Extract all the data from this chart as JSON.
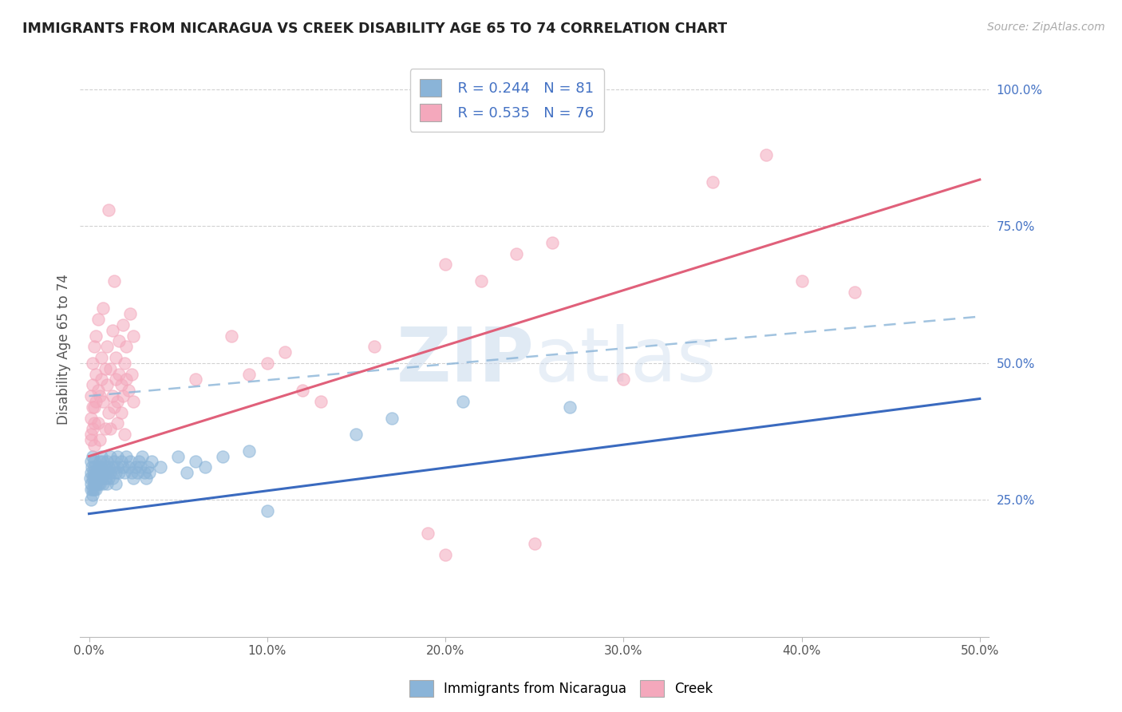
{
  "title": "IMMIGRANTS FROM NICARAGUA VS CREEK DISABILITY AGE 65 TO 74 CORRELATION CHART",
  "source": "Source: ZipAtlas.com",
  "ylabel": "Disability Age 65 to 74",
  "xlim": [
    -0.005,
    0.505
  ],
  "ylim": [
    0.0,
    1.05
  ],
  "xtick_vals": [
    0.0,
    0.1,
    0.2,
    0.3,
    0.4,
    0.5
  ],
  "xtick_labels": [
    "0.0%",
    "10.0%",
    "20.0%",
    "30.0%",
    "40.0%",
    "50.0%"
  ],
  "ytick_vals": [
    0.25,
    0.5,
    0.75,
    1.0
  ],
  "ytick_labels": [
    "25.0%",
    "50.0%",
    "75.0%",
    "100.0%"
  ],
  "nicaragua_color": "#8ab4d8",
  "creek_color": "#f4a8bc",
  "nicaragua_line_color": "#3a6abf",
  "creek_line_color": "#e0607a",
  "dash_line_color": "#8ab4d8",
  "watermark_color": "#ccdcee",
  "legend_label_nicaragua": "Immigrants from Nicaragua",
  "legend_label_creek": "Creek",
  "nic_line": [
    0.0,
    0.225,
    0.5,
    0.435
  ],
  "creek_line": [
    0.0,
    0.33,
    0.5,
    0.835
  ],
  "dash_line": [
    0.0,
    0.44,
    0.5,
    0.585
  ],
  "nicaragua_scatter": [
    [
      0.0005,
      0.29
    ],
    [
      0.001,
      0.27
    ],
    [
      0.001,
      0.3
    ],
    [
      0.001,
      0.28
    ],
    [
      0.001,
      0.32
    ],
    [
      0.001,
      0.25
    ],
    [
      0.0015,
      0.31
    ],
    [
      0.002,
      0.29
    ],
    [
      0.002,
      0.27
    ],
    [
      0.002,
      0.33
    ],
    [
      0.002,
      0.26
    ],
    [
      0.0025,
      0.3
    ],
    [
      0.003,
      0.28
    ],
    [
      0.003,
      0.31
    ],
    [
      0.003,
      0.29
    ],
    [
      0.003,
      0.27
    ],
    [
      0.003,
      0.32
    ],
    [
      0.004,
      0.3
    ],
    [
      0.004,
      0.28
    ],
    [
      0.004,
      0.29
    ],
    [
      0.004,
      0.27
    ],
    [
      0.005,
      0.31
    ],
    [
      0.005,
      0.29
    ],
    [
      0.005,
      0.3
    ],
    [
      0.005,
      0.28
    ],
    [
      0.006,
      0.32
    ],
    [
      0.006,
      0.3
    ],
    [
      0.006,
      0.28
    ],
    [
      0.007,
      0.31
    ],
    [
      0.007,
      0.29
    ],
    [
      0.007,
      0.33
    ],
    [
      0.008,
      0.3
    ],
    [
      0.008,
      0.28
    ],
    [
      0.008,
      0.32
    ],
    [
      0.009,
      0.31
    ],
    [
      0.009,
      0.29
    ],
    [
      0.01,
      0.3
    ],
    [
      0.01,
      0.32
    ],
    [
      0.01,
      0.28
    ],
    [
      0.011,
      0.31
    ],
    [
      0.011,
      0.29
    ],
    [
      0.012,
      0.33
    ],
    [
      0.012,
      0.3
    ],
    [
      0.013,
      0.31
    ],
    [
      0.013,
      0.29
    ],
    [
      0.014,
      0.32
    ],
    [
      0.015,
      0.3
    ],
    [
      0.015,
      0.28
    ],
    [
      0.016,
      0.33
    ],
    [
      0.016,
      0.31
    ],
    [
      0.017,
      0.3
    ],
    [
      0.018,
      0.32
    ],
    [
      0.019,
      0.31
    ],
    [
      0.02,
      0.3
    ],
    [
      0.021,
      0.33
    ],
    [
      0.022,
      0.31
    ],
    [
      0.023,
      0.32
    ],
    [
      0.024,
      0.3
    ],
    [
      0.025,
      0.29
    ],
    [
      0.026,
      0.31
    ],
    [
      0.027,
      0.3
    ],
    [
      0.028,
      0.32
    ],
    [
      0.029,
      0.31
    ],
    [
      0.03,
      0.33
    ],
    [
      0.031,
      0.3
    ],
    [
      0.032,
      0.29
    ],
    [
      0.033,
      0.31
    ],
    [
      0.034,
      0.3
    ],
    [
      0.035,
      0.32
    ],
    [
      0.04,
      0.31
    ],
    [
      0.05,
      0.33
    ],
    [
      0.055,
      0.3
    ],
    [
      0.06,
      0.32
    ],
    [
      0.065,
      0.31
    ],
    [
      0.075,
      0.33
    ],
    [
      0.09,
      0.34
    ],
    [
      0.1,
      0.23
    ],
    [
      0.15,
      0.37
    ],
    [
      0.17,
      0.4
    ],
    [
      0.21,
      0.43
    ],
    [
      0.27,
      0.42
    ]
  ],
  "creek_scatter": [
    [
      0.001,
      0.36
    ],
    [
      0.001,
      0.4
    ],
    [
      0.001,
      0.44
    ],
    [
      0.001,
      0.37
    ],
    [
      0.002,
      0.42
    ],
    [
      0.002,
      0.38
    ],
    [
      0.002,
      0.5
    ],
    [
      0.002,
      0.46
    ],
    [
      0.003,
      0.35
    ],
    [
      0.003,
      0.53
    ],
    [
      0.003,
      0.42
    ],
    [
      0.003,
      0.39
    ],
    [
      0.004,
      0.55
    ],
    [
      0.004,
      0.43
    ],
    [
      0.004,
      0.48
    ],
    [
      0.005,
      0.39
    ],
    [
      0.005,
      0.58
    ],
    [
      0.005,
      0.45
    ],
    [
      0.006,
      0.44
    ],
    [
      0.006,
      0.36
    ],
    [
      0.007,
      0.51
    ],
    [
      0.007,
      0.47
    ],
    [
      0.008,
      0.6
    ],
    [
      0.008,
      0.43
    ],
    [
      0.009,
      0.49
    ],
    [
      0.009,
      0.38
    ],
    [
      0.01,
      0.46
    ],
    [
      0.01,
      0.53
    ],
    [
      0.011,
      0.41
    ],
    [
      0.011,
      0.78
    ],
    [
      0.012,
      0.38
    ],
    [
      0.012,
      0.49
    ],
    [
      0.013,
      0.56
    ],
    [
      0.013,
      0.44
    ],
    [
      0.014,
      0.42
    ],
    [
      0.014,
      0.65
    ],
    [
      0.015,
      0.51
    ],
    [
      0.015,
      0.47
    ],
    [
      0.016,
      0.43
    ],
    [
      0.016,
      0.39
    ],
    [
      0.017,
      0.54
    ],
    [
      0.017,
      0.48
    ],
    [
      0.018,
      0.46
    ],
    [
      0.018,
      0.41
    ],
    [
      0.019,
      0.57
    ],
    [
      0.019,
      0.44
    ],
    [
      0.02,
      0.5
    ],
    [
      0.02,
      0.37
    ],
    [
      0.021,
      0.53
    ],
    [
      0.021,
      0.47
    ],
    [
      0.022,
      0.45
    ],
    [
      0.023,
      0.59
    ],
    [
      0.024,
      0.48
    ],
    [
      0.025,
      0.55
    ],
    [
      0.025,
      0.43
    ],
    [
      0.06,
      0.47
    ],
    [
      0.08,
      0.55
    ],
    [
      0.09,
      0.48
    ],
    [
      0.1,
      0.5
    ],
    [
      0.11,
      0.52
    ],
    [
      0.12,
      0.45
    ],
    [
      0.13,
      0.43
    ],
    [
      0.16,
      0.53
    ],
    [
      0.2,
      0.68
    ],
    [
      0.22,
      0.65
    ],
    [
      0.24,
      0.7
    ],
    [
      0.26,
      0.72
    ],
    [
      0.3,
      0.47
    ],
    [
      0.35,
      0.83
    ],
    [
      0.38,
      0.88
    ],
    [
      0.4,
      0.65
    ],
    [
      0.43,
      0.63
    ],
    [
      0.2,
      0.15
    ],
    [
      0.19,
      0.19
    ],
    [
      0.25,
      0.17
    ]
  ]
}
